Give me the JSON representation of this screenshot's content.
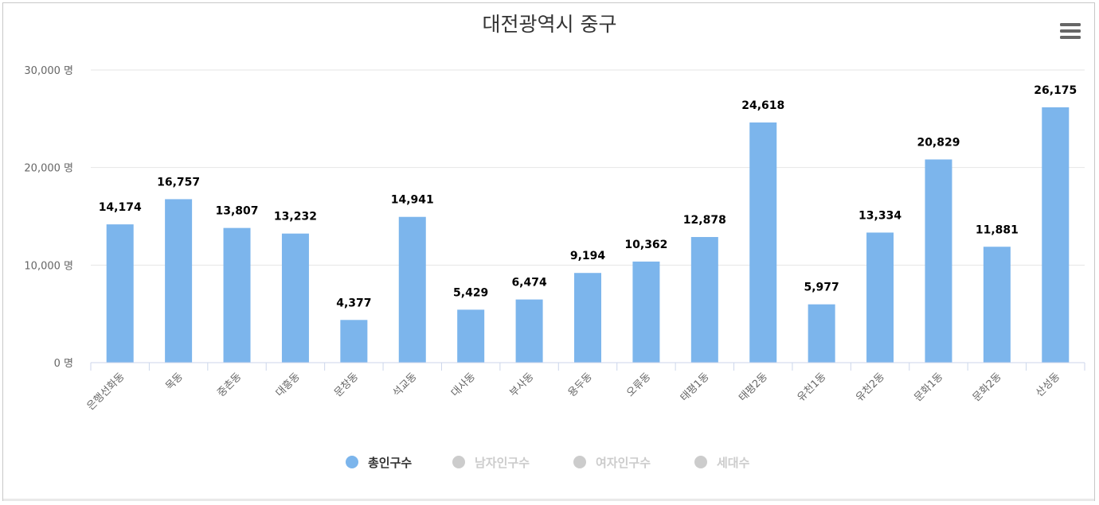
{
  "chart_data": {
    "type": "bar",
    "title": "대전광역시 중구",
    "y_unit": "명",
    "ylim": [
      0,
      30000
    ],
    "yticks": [
      0,
      10000,
      20000,
      30000
    ],
    "ytick_labels": [
      "0 명",
      "10,000 명",
      "20,000 명",
      "30,000 명"
    ],
    "grid": true,
    "categories": [
      "은행선화동",
      "목동",
      "중촌동",
      "대흥동",
      "문창동",
      "석교동",
      "대사동",
      "부사동",
      "용두동",
      "오류동",
      "태평1동",
      "태평2동",
      "유천1동",
      "유천2동",
      "문화1동",
      "문화2동",
      "산성동"
    ],
    "series": [
      {
        "name": "총인구수",
        "visible": true,
        "color": "#7cb5ec",
        "values": [
          14174,
          16757,
          13807,
          13232,
          4377,
          14941,
          5429,
          6474,
          9194,
          10362,
          12878,
          24618,
          5977,
          13334,
          20829,
          11881,
          26175
        ],
        "labels": [
          "14,174",
          "16,757",
          "13,807",
          "13,232",
          "4,377",
          "14,941",
          "5,429",
          "6,474",
          "9,194",
          "10,362",
          "12,878",
          "24,618",
          "5,977",
          "13,334",
          "20,829",
          "11,881",
          "26,175"
        ]
      },
      {
        "name": "남자인구수",
        "visible": false,
        "color": "#cccccc"
      },
      {
        "name": "여자인구수",
        "visible": false,
        "color": "#cccccc"
      },
      {
        "name": "세대수",
        "visible": false,
        "color": "#cccccc"
      }
    ],
    "legend_placement": "bottom-center",
    "colors": {
      "bar": "#7cb5ec",
      "grid": "#e6e6e6",
      "axis": "#ccd6eb",
      "legend_active_text": "#333333",
      "legend_inactive": "#cccccc",
      "menu_icon": "#666666"
    }
  },
  "toolbar": {
    "menu_icon": "hamburger-menu-icon"
  }
}
